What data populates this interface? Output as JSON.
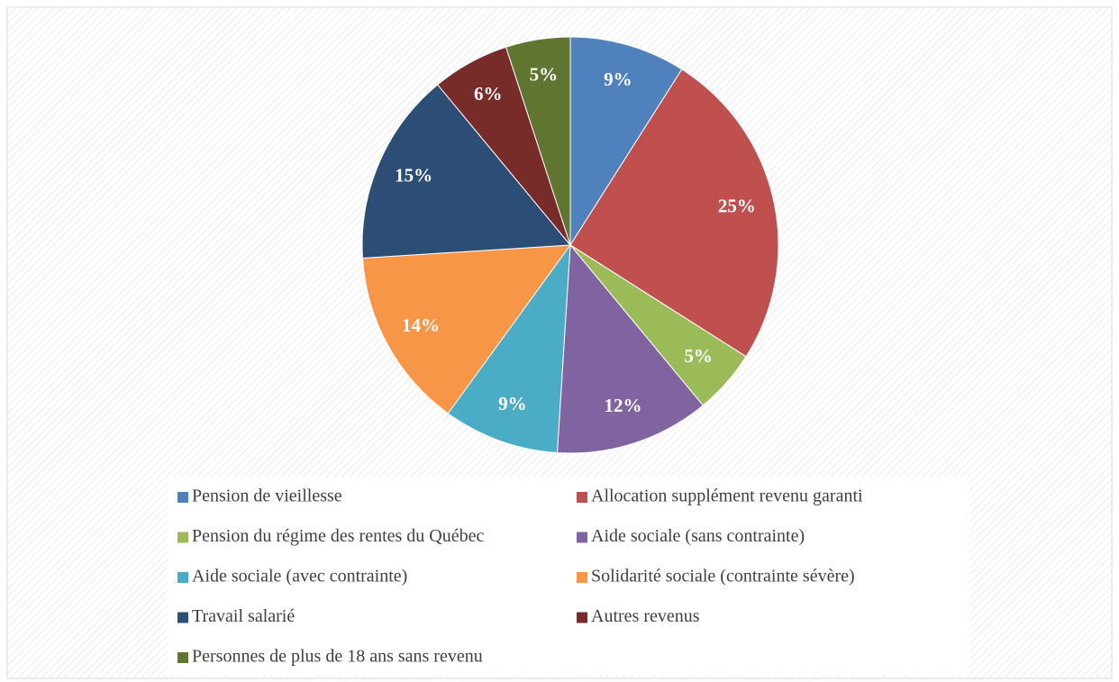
{
  "chart_data": {
    "type": "pie",
    "categories": [
      "Pension de vieillesse",
      "Allocation supplément revenu garanti",
      "Pension du régime des rentes du Québec",
      "Aide sociale (sans contrainte)",
      "Aide sociale (avec contrainte)",
      "Solidarité sociale (contrainte sévère)",
      "Travail salarié",
      "Autres revenus",
      "Personnes de plus de 18 ans sans revenu"
    ],
    "values": [
      9,
      25,
      5,
      12,
      9,
      14,
      15,
      6,
      5
    ],
    "value_labels": [
      "9%",
      "25%",
      "5%",
      "12%",
      "9%",
      "14%",
      "15%",
      "6%",
      "5%"
    ],
    "colors": [
      "#4f81bd",
      "#c0504d",
      "#9bbb59",
      "#8064a2",
      "#4bacc6",
      "#f79646",
      "#2c4d75",
      "#772c2a",
      "#5f7530"
    ],
    "legend": "bottom"
  }
}
